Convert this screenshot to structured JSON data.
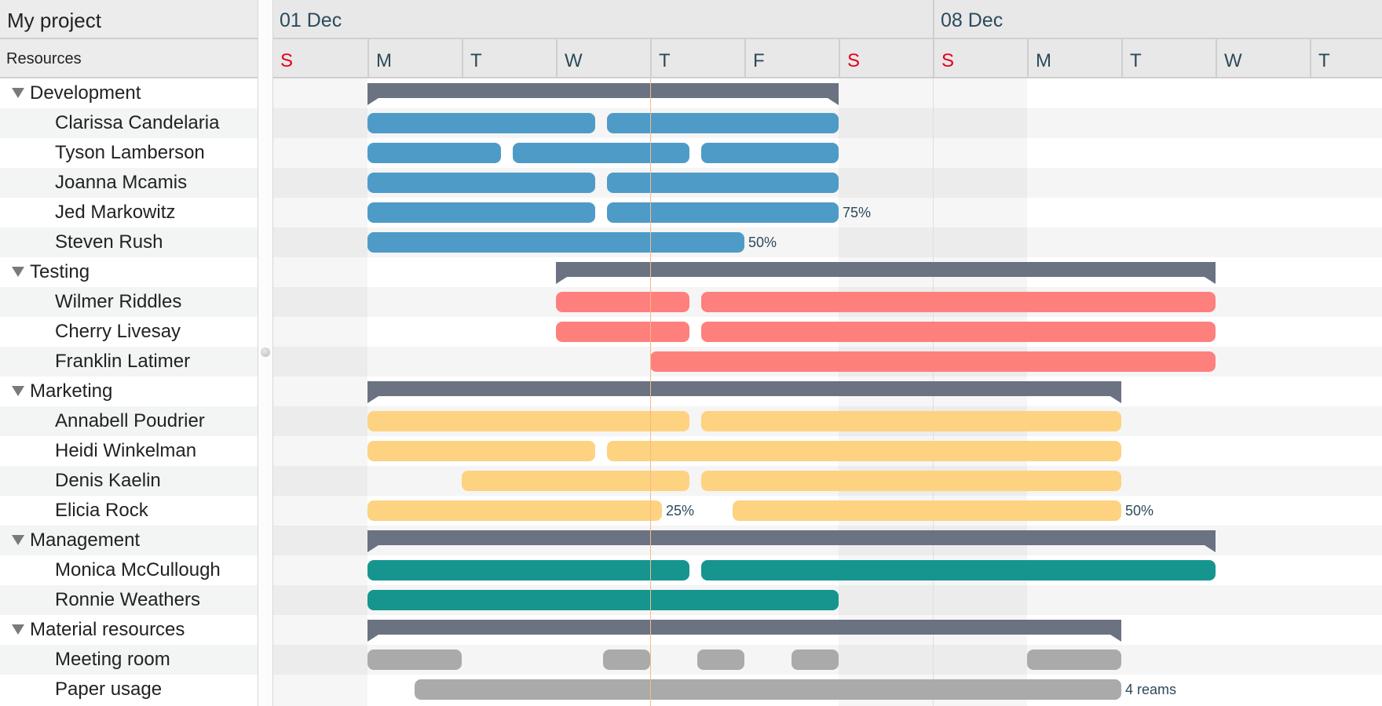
{
  "header": {
    "project_title": "My project",
    "column_title": "Resources"
  },
  "timeline": {
    "weeks": [
      {
        "label": "01 Dec",
        "start": "01 Dec"
      },
      {
        "label": "08 Dec",
        "start": "08 Dec"
      }
    ],
    "days": [
      {
        "label": "S",
        "date": "01 Dec",
        "weekend": true
      },
      {
        "label": "M",
        "date": "02 Dec",
        "weekend": false
      },
      {
        "label": "T",
        "date": "03 Dec",
        "weekend": false
      },
      {
        "label": "W",
        "date": "04 Dec",
        "weekend": false
      },
      {
        "label": "T",
        "date": "05 Dec",
        "weekend": false
      },
      {
        "label": "F",
        "date": "06 Dec",
        "weekend": false
      },
      {
        "label": "S",
        "date": "07 Dec",
        "weekend": true
      },
      {
        "label": "S",
        "date": "08 Dec",
        "weekend": true
      },
      {
        "label": "M",
        "date": "09 Dec",
        "weekend": false
      },
      {
        "label": "T",
        "date": "10 Dec",
        "weekend": false
      },
      {
        "label": "W",
        "date": "11 Dec",
        "weekend": false
      },
      {
        "label": "T",
        "date": "12 Dec",
        "weekend": false
      }
    ],
    "today": "05 Dec 00:00"
  },
  "colors": {
    "Development": "#4f9bc8",
    "Testing": "#fd807d",
    "Marketing": "#fdd281",
    "Management": "#16958f",
    "Material resources": "#aaaaaa",
    "summary": "#6b7281",
    "weekend_label": "#e3001b"
  },
  "rows": [
    {
      "type": "group",
      "label": "Development",
      "group": "Development",
      "summary": [
        "02 Dec 00:00",
        "07 Dec 00:00"
      ]
    },
    {
      "type": "res",
      "label": "Clarissa Candelaria",
      "group": "Development",
      "bars": [
        [
          "02 Dec 00:00",
          "04 Dec 10:00"
        ],
        [
          "04 Dec 13:00",
          "07 Dec 00:00"
        ]
      ]
    },
    {
      "type": "res",
      "label": "Tyson Lamberson",
      "group": "Development",
      "bars": [
        [
          "02 Dec 00:00",
          "03 Dec 10:00"
        ],
        [
          "03 Dec 13:00",
          "05 Dec 10:00"
        ],
        [
          "05 Dec 13:00",
          "07 Dec 00:00"
        ]
      ]
    },
    {
      "type": "res",
      "label": "Joanna Mcamis",
      "group": "Development",
      "bars": [
        [
          "02 Dec 00:00",
          "04 Dec 10:00"
        ],
        [
          "04 Dec 13:00",
          "07 Dec 00:00"
        ]
      ]
    },
    {
      "type": "res",
      "label": "Jed Markowitz",
      "group": "Development",
      "bars": [
        [
          "02 Dec 00:00",
          "04 Dec 10:00"
        ],
        [
          "04 Dec 13:00",
          "07 Dec 00:00",
          "75%"
        ]
      ]
    },
    {
      "type": "res",
      "label": "Steven Rush",
      "group": "Development",
      "bars": [
        [
          "02 Dec 00:00",
          "06 Dec 00:00",
          "50%"
        ]
      ]
    },
    {
      "type": "group",
      "label": "Testing",
      "group": "Testing",
      "summary": [
        "04 Dec 00:00",
        "11 Dec 00:00"
      ]
    },
    {
      "type": "res",
      "label": "Wilmer Riddles",
      "group": "Testing",
      "bars": [
        [
          "04 Dec 00:00",
          "05 Dec 10:00"
        ],
        [
          "05 Dec 13:00",
          "11 Dec 00:00"
        ]
      ]
    },
    {
      "type": "res",
      "label": "Cherry Livesay",
      "group": "Testing",
      "bars": [
        [
          "04 Dec 00:00",
          "05 Dec 10:00"
        ],
        [
          "05 Dec 13:00",
          "11 Dec 00:00"
        ]
      ]
    },
    {
      "type": "res",
      "label": "Franklin Latimer",
      "group": "Testing",
      "bars": [
        [
          "05 Dec 00:00",
          "11 Dec 00:00"
        ]
      ]
    },
    {
      "type": "group",
      "label": "Marketing",
      "group": "Marketing",
      "summary": [
        "02 Dec 00:00",
        "10 Dec 00:00"
      ]
    },
    {
      "type": "res",
      "label": "Annabell Poudrier",
      "group": "Marketing",
      "bars": [
        [
          "02 Dec 00:00",
          "05 Dec 10:00"
        ],
        [
          "05 Dec 13:00",
          "10 Dec 00:00"
        ]
      ]
    },
    {
      "type": "res",
      "label": "Heidi Winkelman",
      "group": "Marketing",
      "bars": [
        [
          "02 Dec 00:00",
          "04 Dec 10:00"
        ],
        [
          "04 Dec 13:00",
          "10 Dec 00:00"
        ]
      ]
    },
    {
      "type": "res",
      "label": "Denis Kaelin",
      "group": "Marketing",
      "bars": [
        [
          "03 Dec 00:00",
          "05 Dec 10:00"
        ],
        [
          "05 Dec 13:00",
          "10 Dec 00:00"
        ]
      ]
    },
    {
      "type": "res",
      "label": "Elicia Rock",
      "group": "Marketing",
      "bars": [
        [
          "02 Dec 00:00",
          "05 Dec 03:00",
          "25%"
        ],
        [
          "05 Dec 21:00",
          "10 Dec 00:00",
          "50%"
        ]
      ]
    },
    {
      "type": "group",
      "label": "Management",
      "group": "Management",
      "summary": [
        "02 Dec 00:00",
        "11 Dec 00:00"
      ]
    },
    {
      "type": "res",
      "label": "Monica McCullough",
      "group": "Management",
      "bars": [
        [
          "02 Dec 00:00",
          "05 Dec 10:00"
        ],
        [
          "05 Dec 13:00",
          "11 Dec 00:00"
        ]
      ]
    },
    {
      "type": "res",
      "label": "Ronnie Weathers",
      "group": "Management",
      "bars": [
        [
          "02 Dec 00:00",
          "07 Dec 00:00"
        ]
      ]
    },
    {
      "type": "group",
      "label": "Material resources",
      "group": "Material resources",
      "summary": [
        "02 Dec 00:00",
        "10 Dec 00:00"
      ]
    },
    {
      "type": "res",
      "label": "Meeting room",
      "group": "Material resources",
      "bars": [
        [
          "02 Dec 00:00",
          "03 Dec 00:00"
        ],
        [
          "04 Dec 12:00",
          "05 Dec 00:00"
        ],
        [
          "05 Dec 12:00",
          "06 Dec 00:00"
        ],
        [
          "06 Dec 12:00",
          "07 Dec 00:00"
        ],
        [
          "09 Dec 00:00",
          "10 Dec 00:00"
        ]
      ]
    },
    {
      "type": "res",
      "label": "Paper usage",
      "group": "Material resources",
      "bars": [
        [
          "02 Dec 12:00",
          "10 Dec 00:00",
          "4 reams"
        ]
      ]
    }
  ]
}
